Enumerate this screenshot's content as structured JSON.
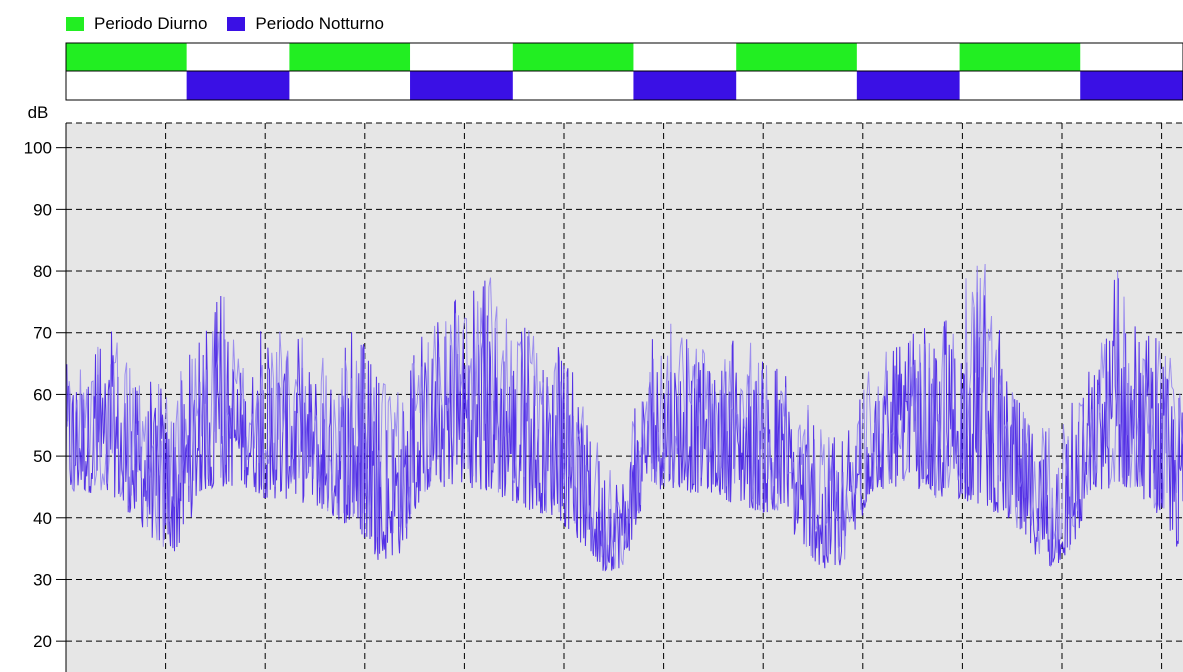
{
  "legend": {
    "items": [
      {
        "label": "Periodo Diurno",
        "color": "#22ee22"
      },
      {
        "label": "Periodo Notturno",
        "color": "#3a10e5"
      }
    ]
  },
  "chart_data": {
    "type": "line",
    "title": "",
    "xlabel": "",
    "ylabel": "dB",
    "ylim": [
      15,
      104
    ],
    "yticks": [
      20,
      30,
      40,
      50,
      60,
      70,
      80,
      90,
      100
    ],
    "grid": true,
    "grid_style": "dashed",
    "legend_position": "top-left",
    "plot_background": "#e6e6e6",
    "line_color": "#3a10e5",
    "period_strip": {
      "day_color": "#22ee22",
      "night_color": "#3a10e5",
      "sequence": [
        {
          "period": "day",
          "span": 0.108
        },
        {
          "period": "night",
          "span": 0.092
        },
        {
          "period": "day",
          "span": 0.108
        },
        {
          "period": "night",
          "span": 0.092
        },
        {
          "period": "day",
          "span": 0.108
        },
        {
          "period": "night",
          "span": 0.092
        },
        {
          "period": "day",
          "span": 0.108
        },
        {
          "period": "night",
          "span": 0.092
        },
        {
          "period": "day",
          "span": 0.108
        },
        {
          "period": "night",
          "span": 0.092
        },
        {
          "period": "day",
          "span": 0.108
        },
        {
          "period": "night",
          "span": 0.092
        }
      ]
    },
    "series": [
      {
        "x": [
          0,
          0.02,
          0.04,
          0.06,
          0.08,
          0.1,
          0.12,
          0.14,
          0.16,
          0.18,
          0.2,
          0.22,
          0.24,
          0.26,
          0.28,
          0.3,
          0.32,
          0.34,
          0.36,
          0.38,
          0.4,
          0.42,
          0.44,
          0.46,
          0.48,
          0.5,
          0.52,
          0.54,
          0.56,
          0.58,
          0.6,
          0.62,
          0.64,
          0.66,
          0.68,
          0.7,
          0.72,
          0.74,
          0.76,
          0.78,
          0.8,
          0.82,
          0.84,
          0.86,
          0.88,
          0.9,
          0.92,
          0.94,
          0.96,
          0.98,
          1.0
        ],
        "low": [
          43,
          44,
          44,
          40,
          36,
          34,
          44,
          45,
          45,
          43,
          43,
          42,
          40,
          38,
          33,
          34,
          44,
          45,
          45,
          44,
          42,
          41,
          40,
          36,
          31,
          32,
          44,
          45,
          44,
          44,
          42,
          41,
          40,
          35,
          31,
          32,
          44,
          45,
          45,
          43,
          43,
          42,
          40,
          36,
          31,
          34,
          44,
          45,
          44,
          40,
          33
        ],
        "high": [
          69,
          66,
          71,
          66,
          62,
          63,
          70,
          77,
          66,
          73,
          70,
          69,
          65,
          72,
          62,
          62,
          70,
          75,
          78,
          80,
          72,
          70,
          68,
          62,
          52,
          50,
          68,
          72,
          70,
          68,
          70,
          68,
          64,
          60,
          53,
          54,
          66,
          68,
          70,
          72,
          76,
          86,
          68,
          60,
          55,
          60,
          67,
          81,
          70,
          70,
          64
        ]
      }
    ]
  }
}
